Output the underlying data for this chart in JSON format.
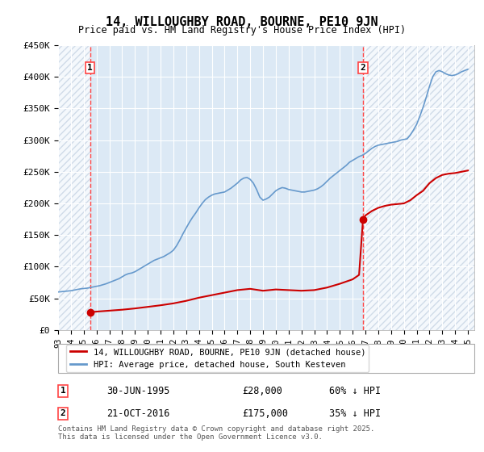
{
  "title": "14, WILLOUGHBY ROAD, BOURNE, PE10 9JN",
  "subtitle": "Price paid vs. HM Land Registry's House Price Index (HPI)",
  "ylabel": "",
  "xlabel": "",
  "ylim": [
    0,
    450000
  ],
  "yticks": [
    0,
    50000,
    100000,
    150000,
    200000,
    250000,
    300000,
    350000,
    400000,
    450000
  ],
  "ytick_labels": [
    "£0",
    "£50K",
    "£100K",
    "£150K",
    "£200K",
    "£250K",
    "£300K",
    "£350K",
    "£400K",
    "£450K"
  ],
  "background_color": "#ffffff",
  "plot_bg_color": "#dce9f5",
  "hatch_color": "#c0cfe0",
  "grid_color": "#ffffff",
  "purchase1": {
    "date_x": 1995.496,
    "price": 28000,
    "label": "1",
    "date_str": "30-JUN-1995",
    "price_str": "£28,000",
    "pct_str": "60% ↓ HPI"
  },
  "purchase2": {
    "date_x": 2016.808,
    "price": 175000,
    "label": "2",
    "date_str": "21-OCT-2016",
    "price_str": "£175,000",
    "pct_str": "35% ↓ HPI"
  },
  "line_red_color": "#cc0000",
  "line_blue_color": "#6699cc",
  "marker_color": "#cc0000",
  "vline_color": "#ff4444",
  "legend_label_red": "14, WILLOUGHBY ROAD, BOURNE, PE10 9JN (detached house)",
  "legend_label_blue": "HPI: Average price, detached house, South Kesteven",
  "footer": "Contains HM Land Registry data © Crown copyright and database right 2025.\nThis data is licensed under the Open Government Licence v3.0.",
  "hpi_data": {
    "years": [
      1993.0,
      1993.25,
      1993.5,
      1993.75,
      1994.0,
      1994.25,
      1994.5,
      1994.75,
      1995.0,
      1995.25,
      1995.5,
      1995.75,
      1996.0,
      1996.25,
      1996.5,
      1996.75,
      1997.0,
      1997.25,
      1997.5,
      1997.75,
      1998.0,
      1998.25,
      1998.5,
      1998.75,
      1999.0,
      1999.25,
      1999.5,
      1999.75,
      2000.0,
      2000.25,
      2000.5,
      2000.75,
      2001.0,
      2001.25,
      2001.5,
      2001.75,
      2002.0,
      2002.25,
      2002.5,
      2002.75,
      2003.0,
      2003.25,
      2003.5,
      2003.75,
      2004.0,
      2004.25,
      2004.5,
      2004.75,
      2005.0,
      2005.25,
      2005.5,
      2005.75,
      2006.0,
      2006.25,
      2006.5,
      2006.75,
      2007.0,
      2007.25,
      2007.5,
      2007.75,
      2008.0,
      2008.25,
      2008.5,
      2008.75,
      2009.0,
      2009.25,
      2009.5,
      2009.75,
      2010.0,
      2010.25,
      2010.5,
      2010.75,
      2011.0,
      2011.25,
      2011.5,
      2011.75,
      2012.0,
      2012.25,
      2012.5,
      2012.75,
      2013.0,
      2013.25,
      2013.5,
      2013.75,
      2014.0,
      2014.25,
      2014.5,
      2014.75,
      2015.0,
      2015.25,
      2015.5,
      2015.75,
      2016.0,
      2016.25,
      2016.5,
      2016.75,
      2017.0,
      2017.25,
      2017.5,
      2017.75,
      2018.0,
      2018.25,
      2018.5,
      2018.75,
      2019.0,
      2019.25,
      2019.5,
      2019.75,
      2020.0,
      2020.25,
      2020.5,
      2020.75,
      2021.0,
      2021.25,
      2021.5,
      2021.75,
      2022.0,
      2022.25,
      2022.5,
      2022.75,
      2023.0,
      2023.25,
      2023.5,
      2023.75,
      2024.0,
      2024.25,
      2024.5,
      2024.75,
      2025.0
    ],
    "values": [
      60000,
      60500,
      61000,
      61500,
      62000,
      63000,
      64000,
      65000,
      65500,
      66000,
      67000,
      68000,
      69000,
      70000,
      71500,
      73000,
      75000,
      77000,
      79000,
      81000,
      84000,
      87000,
      89000,
      90000,
      92000,
      95000,
      98000,
      101000,
      104000,
      107000,
      110000,
      112000,
      114000,
      116000,
      119000,
      122000,
      126000,
      133000,
      142000,
      152000,
      161000,
      170000,
      178000,
      185000,
      193000,
      200000,
      206000,
      210000,
      213000,
      215000,
      216000,
      217000,
      218000,
      221000,
      224000,
      228000,
      232000,
      237000,
      240000,
      241000,
      238000,
      232000,
      222000,
      210000,
      205000,
      207000,
      210000,
      215000,
      220000,
      223000,
      225000,
      224000,
      222000,
      221000,
      220000,
      219000,
      218000,
      218000,
      219000,
      220000,
      221000,
      223000,
      226000,
      230000,
      235000,
      240000,
      244000,
      248000,
      252000,
      256000,
      260000,
      265000,
      268000,
      271000,
      274000,
      276000,
      279000,
      283000,
      287000,
      290000,
      292000,
      293000,
      294000,
      295000,
      296000,
      297000,
      298000,
      300000,
      301000,
      302000,
      308000,
      316000,
      325000,
      338000,
      352000,
      368000,
      385000,
      400000,
      408000,
      410000,
      408000,
      405000,
      403000,
      402000,
      403000,
      405000,
      408000,
      410000,
      412000
    ]
  },
  "red_line_data": {
    "years": [
      1995.496,
      1995.496,
      1996.0,
      1997.0,
      1998.0,
      1999.0,
      2000.0,
      2001.0,
      2002.0,
      2003.0,
      2004.0,
      2005.0,
      2006.0,
      2007.0,
      2008.0,
      2009.0,
      2010.0,
      2011.0,
      2012.0,
      2013.0,
      2014.0,
      2015.0,
      2016.0,
      2016.5,
      2016.808,
      2016.808,
      2017.0,
      2017.5,
      2018.0,
      2018.5,
      2019.0,
      2019.5,
      2020.0,
      2020.5,
      2021.0,
      2021.5,
      2022.0,
      2022.5,
      2023.0,
      2023.5,
      2024.0,
      2024.5,
      2025.0
    ],
    "values": [
      28000,
      28000,
      29000,
      30500,
      32000,
      34000,
      36500,
      39000,
      42000,
      46000,
      51000,
      55000,
      59000,
      63000,
      65000,
      62000,
      64000,
      63000,
      62000,
      63000,
      67000,
      73000,
      80000,
      87000,
      175000,
      175000,
      181000,
      188000,
      193000,
      196000,
      198000,
      199000,
      200000,
      205000,
      213000,
      220000,
      232000,
      240000,
      245000,
      247000,
      248000,
      250000,
      252000
    ]
  },
  "xmin": 1993.0,
  "xmax": 2025.5,
  "xtick_years": [
    1993,
    1994,
    1995,
    1996,
    1997,
    1998,
    1999,
    2000,
    2001,
    2002,
    2003,
    2004,
    2005,
    2006,
    2007,
    2008,
    2009,
    2010,
    2011,
    2012,
    2013,
    2014,
    2015,
    2016,
    2017,
    2018,
    2019,
    2020,
    2021,
    2022,
    2023,
    2024,
    2025
  ]
}
